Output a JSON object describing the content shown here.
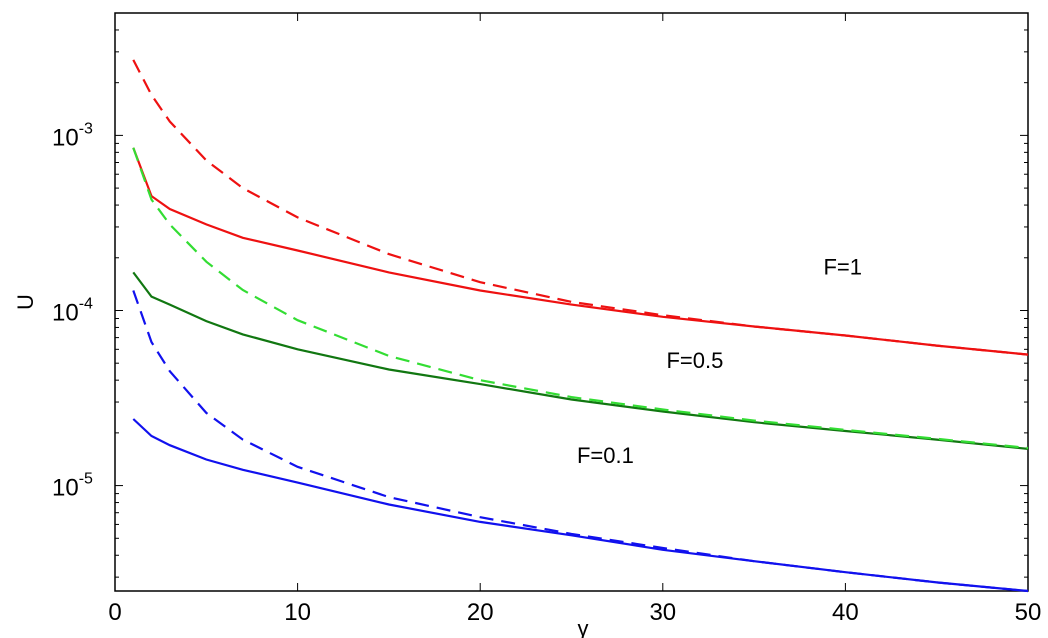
{
  "chart_data": {
    "type": "line",
    "title": "",
    "xlabel": "γ",
    "ylabel": "U",
    "xlim": [
      0,
      50
    ],
    "ylim": [
      2.5e-06,
      0.005
    ],
    "yscale": "log",
    "grid": false,
    "legend": "none",
    "x_ticks": [
      0,
      10,
      20,
      30,
      40,
      50
    ],
    "x_tick_labels": [
      "0",
      "10",
      "20",
      "30",
      "40",
      "50"
    ],
    "y_ticks": [
      {
        "value": 1e-05,
        "base": "10",
        "exp": "-5"
      },
      {
        "value": 0.0001,
        "base": "10",
        "exp": "-4"
      },
      {
        "value": 0.001,
        "base": "10",
        "exp": "-3"
      }
    ],
    "x": [
      1,
      2,
      3,
      5,
      7,
      10,
      15,
      20,
      25,
      30,
      35,
      40,
      45,
      50
    ],
    "series": [
      {
        "group": "F=1",
        "style": "solid",
        "color": "#ee1111",
        "values": [
          0.00085,
          0.00045,
          0.00038,
          0.00031,
          0.00026,
          0.00022,
          0.000165,
          0.00013,
          0.000108,
          9.2e-05,
          8.1e-05,
          7.2e-05,
          6.3e-05,
          5.6e-05
        ]
      },
      {
        "group": "F=1",
        "style": "dashed",
        "color": "#ee1111",
        "values": [
          0.0027,
          0.0017,
          0.0012,
          0.00072,
          0.0005,
          0.00034,
          0.00021,
          0.000145,
          0.000112,
          9.4e-05,
          8.1e-05,
          7.2e-05,
          6.3e-05,
          5.6e-05
        ]
      },
      {
        "group": "F=0.5",
        "style": "solid",
        "color": "#117711",
        "values": [
          0.000165,
          0.00012,
          0.000108,
          8.7e-05,
          7.3e-05,
          6e-05,
          4.6e-05,
          3.8e-05,
          3.1e-05,
          2.65e-05,
          2.3e-05,
          2.05e-05,
          1.83e-05,
          1.62e-05
        ]
      },
      {
        "group": "F=0.5",
        "style": "dashed",
        "color": "#33dd33",
        "values": [
          0.00085,
          0.00043,
          0.00031,
          0.00019,
          0.000131,
          8.8e-05,
          5.5e-05,
          4e-05,
          3.2e-05,
          2.72e-05,
          2.35e-05,
          2.08e-05,
          1.85e-05,
          1.64e-05
        ]
      },
      {
        "group": "F=0.1",
        "style": "solid",
        "color": "#1111ee",
        "values": [
          2.4e-05,
          1.92e-05,
          1.7e-05,
          1.41e-05,
          1.23e-05,
          1.04e-05,
          7.8e-06,
          6.2e-06,
          5.2e-06,
          4.3e-06,
          3.7e-06,
          3.2e-06,
          2.8e-06,
          2.5e-06
        ]
      },
      {
        "group": "F=0.1",
        "style": "dashed",
        "color": "#1111ee",
        "values": [
          0.00013,
          6.6e-05,
          4.5e-05,
          2.6e-05,
          1.83e-05,
          1.28e-05,
          8.6e-06,
          6.6e-06,
          5.3e-06,
          4.4e-06,
          3.7e-06,
          3.2e-06,
          2.8e-06,
          2.5e-06
        ]
      }
    ],
    "annotations": [
      {
        "text": "F=1",
        "x": 38.8,
        "y": 0.00016
      },
      {
        "text": "F=0.5",
        "x": 30.2,
        "y": 4.7e-05
      },
      {
        "text": "F=0.1",
        "x": 25.3,
        "y": 1.35e-05
      }
    ]
  }
}
